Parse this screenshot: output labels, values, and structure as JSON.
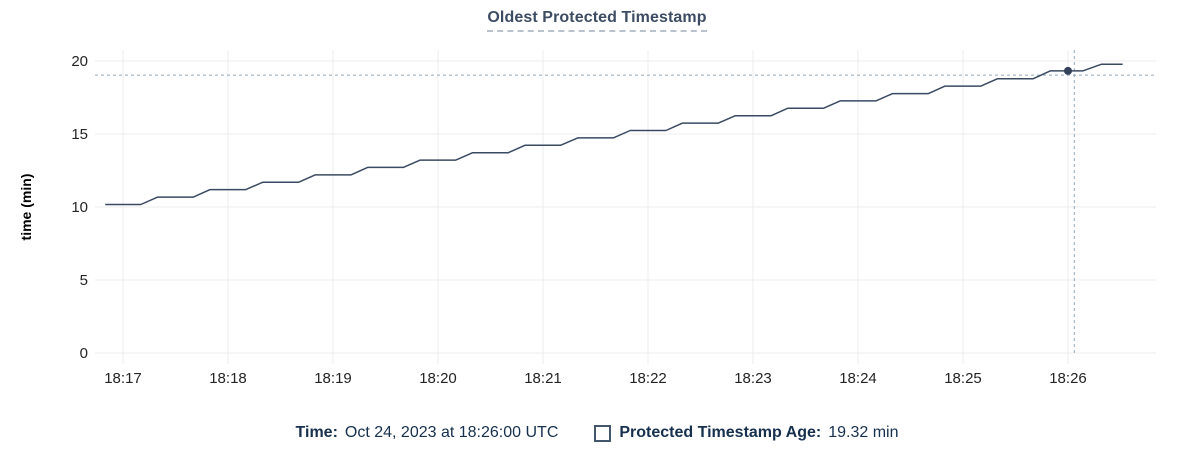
{
  "title": "Oldest Protected Timestamp",
  "chart_data": {
    "type": "line",
    "title": "Oldest Protected Timestamp",
    "xlabel": "",
    "ylabel": "time (min)",
    "ylim": [
      0,
      20
    ],
    "yticks": [
      0,
      5,
      10,
      15,
      20
    ],
    "xtick_labels": [
      "18:17",
      "18:18",
      "18:19",
      "18:20",
      "18:21",
      "18:22",
      "18:23",
      "18:24",
      "18:25",
      "18:26"
    ],
    "x_unit_note": "point x values are minutes after 18:17 UTC",
    "grid": true,
    "legend_position": "bottom",
    "series": [
      {
        "name": "Protected Timestamp Age",
        "unit": "min",
        "points": [
          [
            -0.17,
            10.17
          ],
          [
            0.17,
            10.17
          ],
          [
            0.33,
            10.68
          ],
          [
            0.67,
            10.68
          ],
          [
            0.83,
            11.19
          ],
          [
            1.17,
            11.19
          ],
          [
            1.33,
            11.69
          ],
          [
            1.67,
            11.69
          ],
          [
            1.83,
            12.2
          ],
          [
            2.17,
            12.2
          ],
          [
            2.33,
            12.71
          ],
          [
            2.67,
            12.71
          ],
          [
            2.83,
            13.21
          ],
          [
            3.17,
            13.21
          ],
          [
            3.33,
            13.72
          ],
          [
            3.67,
            13.72
          ],
          [
            3.83,
            14.23
          ],
          [
            4.17,
            14.23
          ],
          [
            4.33,
            14.73
          ],
          [
            4.67,
            14.73
          ],
          [
            4.83,
            15.24
          ],
          [
            5.17,
            15.24
          ],
          [
            5.33,
            15.75
          ],
          [
            5.67,
            15.75
          ],
          [
            5.83,
            16.25
          ],
          [
            6.17,
            16.25
          ],
          [
            6.33,
            16.76
          ],
          [
            6.67,
            16.76
          ],
          [
            6.83,
            17.27
          ],
          [
            7.17,
            17.27
          ],
          [
            7.33,
            17.77
          ],
          [
            7.67,
            17.77
          ],
          [
            7.83,
            18.28
          ],
          [
            8.17,
            18.28
          ],
          [
            8.33,
            18.79
          ],
          [
            8.67,
            18.79
          ],
          [
            8.83,
            19.32
          ],
          [
            9.14,
            19.32
          ],
          [
            9.32,
            19.78
          ],
          [
            9.52,
            19.78
          ]
        ]
      }
    ],
    "hover_point": {
      "x": 9.0,
      "y": 19.32,
      "time": "18:26:00",
      "value_label": "19.32 min"
    },
    "crosshair": {
      "x": 9.06,
      "y": 19.03
    }
  },
  "footer": {
    "time_label": "Time:",
    "time_value": "Oct 24, 2023 at 18:26:00 UTC",
    "series_label": "Protected Timestamp Age:",
    "series_value": "19.32 min"
  },
  "colors": {
    "line": "#3a4a62",
    "dot": "#33425a",
    "crosshair": "#93a9b8",
    "grid": "#ececec",
    "title_text": "#3d4c63",
    "axis_text": "#242424",
    "axis_label_text": "#000000",
    "legend_text": "#16304e",
    "checkbox_border": "#44566b",
    "title_underline": "#b9c2cc"
  }
}
